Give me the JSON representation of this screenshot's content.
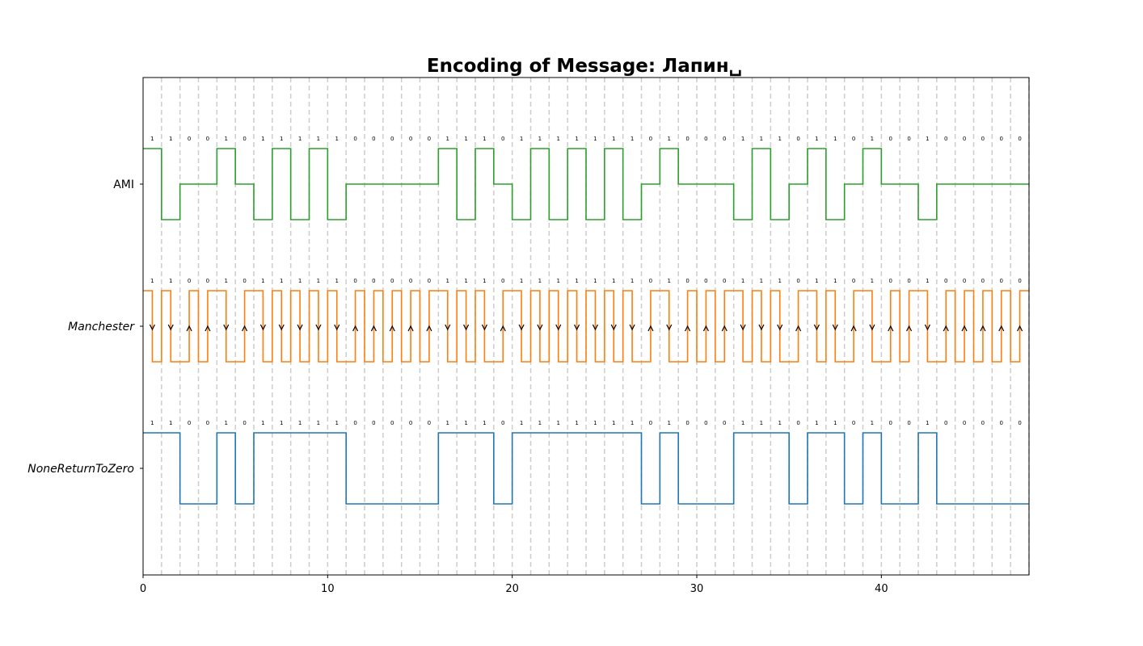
{
  "chart_data": {
    "type": "line",
    "title": "Encoding of Message: Лапин␣",
    "xlabel": "",
    "ylabel": "",
    "xlim": [
      0,
      48
    ],
    "xticks": [
      0,
      10,
      20,
      30,
      40
    ],
    "grid_x": true,
    "bits": [
      1,
      1,
      0,
      0,
      1,
      0,
      1,
      1,
      1,
      1,
      1,
      0,
      0,
      0,
      0,
      0,
      1,
      1,
      1,
      0,
      1,
      1,
      1,
      1,
      1,
      1,
      1,
      0,
      1,
      0,
      0,
      0,
      1,
      1,
      1,
      0,
      1,
      1,
      0,
      1,
      0,
      0,
      1,
      0,
      0,
      0,
      0,
      0
    ],
    "series": [
      {
        "name": "AMI",
        "color": "#2ca02c",
        "encoding": "ami"
      },
      {
        "name": "Manchester",
        "color": "#ff7f0e",
        "encoding": "manchester"
      },
      {
        "name": "NoneReturnToZero",
        "color": "#1f77b4",
        "encoding": "nrz"
      }
    ]
  }
}
